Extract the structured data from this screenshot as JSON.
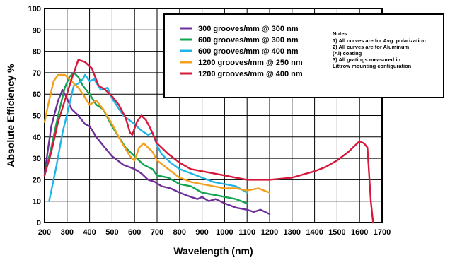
{
  "chart_data": {
    "type": "line",
    "xlabel": "Wavelength (nm)",
    "ylabel": "Absolute Efficiency %",
    "xlim": [
      200,
      1700
    ],
    "ylim": [
      0,
      100
    ],
    "x_ticks": [
      200,
      300,
      400,
      500,
      600,
      700,
      800,
      900,
      1000,
      1100,
      1200,
      1300,
      1400,
      1500,
      1600,
      1700
    ],
    "y_ticks": [
      0,
      10,
      20,
      30,
      40,
      50,
      60,
      70,
      80,
      90,
      100
    ],
    "grid": true,
    "legend_position": "top-right",
    "series": [
      {
        "name": "300 grooves/mm  @  300 nm",
        "color": "#6f2f9a",
        "points": [
          [
            200,
            23
          ],
          [
            230,
            45
          ],
          [
            260,
            57
          ],
          [
            280,
            62
          ],
          [
            300,
            58
          ],
          [
            320,
            53
          ],
          [
            350,
            50
          ],
          [
            380,
            46
          ],
          [
            400,
            45
          ],
          [
            430,
            40
          ],
          [
            460,
            36
          ],
          [
            500,
            31
          ],
          [
            550,
            27
          ],
          [
            600,
            25
          ],
          [
            630,
            23
          ],
          [
            660,
            20
          ],
          [
            690,
            19
          ],
          [
            720,
            17
          ],
          [
            760,
            16
          ],
          [
            800,
            14
          ],
          [
            850,
            12
          ],
          [
            880,
            11
          ],
          [
            900,
            12
          ],
          [
            930,
            10
          ],
          [
            960,
            11
          ],
          [
            1000,
            9
          ],
          [
            1050,
            7
          ],
          [
            1100,
            6
          ],
          [
            1130,
            5
          ],
          [
            1160,
            6
          ],
          [
            1200,
            4
          ]
        ]
      },
      {
        "name": "600 grooves/mm  @ 300 nm",
        "color": "#11a552",
        "points": [
          [
            200,
            22
          ],
          [
            230,
            35
          ],
          [
            260,
            50
          ],
          [
            290,
            63
          ],
          [
            310,
            68
          ],
          [
            330,
            70
          ],
          [
            350,
            68
          ],
          [
            370,
            64
          ],
          [
            400,
            60
          ],
          [
            430,
            55
          ],
          [
            460,
            53
          ],
          [
            500,
            45
          ],
          [
            530,
            40
          ],
          [
            560,
            35
          ],
          [
            600,
            31
          ],
          [
            640,
            27
          ],
          [
            680,
            25
          ],
          [
            700,
            22
          ],
          [
            750,
            21
          ],
          [
            800,
            18
          ],
          [
            850,
            17
          ],
          [
            900,
            14
          ],
          [
            950,
            13
          ],
          [
            1000,
            12
          ],
          [
            1050,
            11
          ],
          [
            1100,
            9
          ]
        ]
      },
      {
        "name": "600 grooves/mm   @ 400 nm",
        "color": "#20b5e6",
        "points": [
          [
            220,
            10
          ],
          [
            250,
            25
          ],
          [
            280,
            42
          ],
          [
            310,
            55
          ],
          [
            330,
            64
          ],
          [
            350,
            65
          ],
          [
            370,
            67
          ],
          [
            380,
            69
          ],
          [
            400,
            66
          ],
          [
            420,
            67
          ],
          [
            450,
            62
          ],
          [
            480,
            63
          ],
          [
            500,
            58
          ],
          [
            550,
            50
          ],
          [
            600,
            46
          ],
          [
            630,
            43
          ],
          [
            660,
            41
          ],
          [
            680,
            42
          ],
          [
            700,
            36
          ],
          [
            720,
            32
          ],
          [
            760,
            28
          ],
          [
            800,
            25
          ],
          [
            850,
            23
          ],
          [
            900,
            21
          ],
          [
            950,
            19
          ],
          [
            1000,
            18
          ],
          [
            1050,
            17
          ],
          [
            1100,
            14
          ]
        ]
      },
      {
        "name": "1200 grooves/mm  @ 250 nm",
        "color": "#f3a01c",
        "points": [
          [
            200,
            47
          ],
          [
            220,
            57
          ],
          [
            240,
            66
          ],
          [
            260,
            69
          ],
          [
            290,
            69
          ],
          [
            320,
            66
          ],
          [
            350,
            63
          ],
          [
            370,
            60
          ],
          [
            400,
            55
          ],
          [
            430,
            57
          ],
          [
            460,
            53
          ],
          [
            500,
            46
          ],
          [
            540,
            38
          ],
          [
            580,
            31
          ],
          [
            600,
            29
          ],
          [
            620,
            35
          ],
          [
            640,
            37
          ],
          [
            660,
            35
          ],
          [
            680,
            33
          ],
          [
            700,
            29
          ],
          [
            750,
            25
          ],
          [
            800,
            21
          ],
          [
            850,
            19
          ],
          [
            900,
            18
          ],
          [
            950,
            17
          ],
          [
            1000,
            16
          ],
          [
            1050,
            16
          ],
          [
            1100,
            15
          ],
          [
            1150,
            16
          ],
          [
            1200,
            14
          ]
        ]
      },
      {
        "name": "1200 grooves/mm  @ 400 nm",
        "color": "#d7183c",
        "points": [
          [
            200,
            22
          ],
          [
            230,
            33
          ],
          [
            260,
            47
          ],
          [
            290,
            57
          ],
          [
            320,
            67
          ],
          [
            350,
            76
          ],
          [
            380,
            75
          ],
          [
            410,
            72
          ],
          [
            440,
            64
          ],
          [
            470,
            62
          ],
          [
            500,
            59
          ],
          [
            530,
            55
          ],
          [
            560,
            49
          ],
          [
            580,
            42
          ],
          [
            590,
            41
          ],
          [
            610,
            47
          ],
          [
            630,
            50
          ],
          [
            650,
            48
          ],
          [
            670,
            44
          ],
          [
            700,
            37
          ],
          [
            750,
            32
          ],
          [
            800,
            28
          ],
          [
            850,
            25
          ],
          [
            900,
            24
          ],
          [
            950,
            23
          ],
          [
            1000,
            22
          ],
          [
            1050,
            21
          ],
          [
            1100,
            20
          ],
          [
            1150,
            20
          ],
          [
            1200,
            20
          ],
          [
            1300,
            21
          ],
          [
            1400,
            24
          ],
          [
            1450,
            26
          ],
          [
            1500,
            29
          ],
          [
            1550,
            33
          ],
          [
            1580,
            36
          ],
          [
            1600,
            38
          ],
          [
            1620,
            37
          ],
          [
            1635,
            35
          ],
          [
            1650,
            10
          ],
          [
            1660,
            0
          ]
        ]
      }
    ]
  },
  "notes": {
    "title": "Notes:",
    "lines": [
      "1) All curves are for Avg. polarization",
      "2) All curves are for Aluminum",
      "    (Al) coating",
      "3) All gratings measured in",
      "    Littrow mounting configuration"
    ]
  }
}
